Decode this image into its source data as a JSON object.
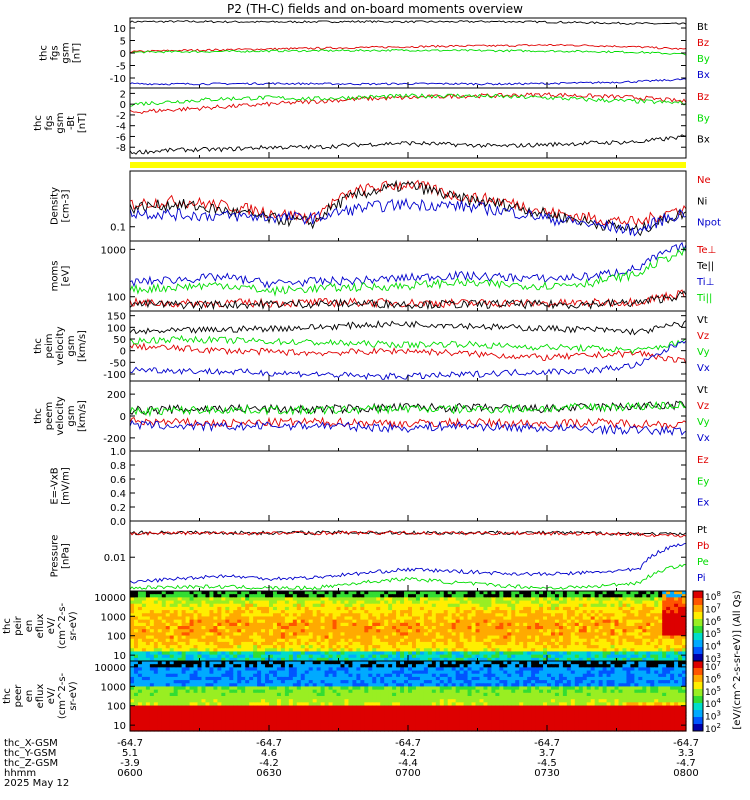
{
  "title": "P2 (TH-C) fields and on-board moments overview",
  "colors": {
    "black": "#000000",
    "red": "#e00000",
    "green": "#00dd00",
    "blue": "#0000cc",
    "yellow": "#ffff00"
  },
  "chart_data": [
    {
      "type": "line",
      "ylabel": [
        "thc",
        "fgs",
        "gsm",
        "[nT]"
      ],
      "ylim": [
        -14,
        14
      ],
      "yticks": [
        "10",
        "5",
        "0",
        "-5",
        "-10"
      ],
      "ytick_values": [
        10,
        5,
        0,
        -5,
        -10
      ],
      "series": [
        {
          "name": "Bt",
          "color": "black",
          "values": [
            12.5,
            12.6,
            12.5,
            12.4,
            12.5,
            12.6,
            12.5,
            12.5,
            12.6,
            12.4,
            12.1,
            11.8,
            11.6
          ]
        },
        {
          "name": "Bz",
          "color": "red",
          "values": [
            0.5,
            1,
            1.3,
            1.6,
            1.9,
            2.2,
            2.5,
            2.8,
            2.9,
            3.2,
            3.0,
            2.4,
            1.5
          ]
        },
        {
          "name": "By",
          "color": "green",
          "values": [
            0.3,
            0.5,
            0.6,
            0.8,
            0.9,
            1.0,
            1.1,
            1.0,
            0.9,
            0.8,
            0.6,
            0.3,
            -0.5
          ]
        },
        {
          "name": "Bx",
          "color": "blue",
          "values": [
            -12.3,
            -12.4,
            -12.3,
            -12.2,
            -12.3,
            -12.4,
            -12.3,
            -12.3,
            -12.4,
            -12.2,
            -11.9,
            -11.4,
            -10.5
          ]
        }
      ]
    },
    {
      "type": "line",
      "ylabel": [
        "thc",
        "fgs",
        "gsm",
        "-Bt",
        "[nT]"
      ],
      "ylim": [
        -10,
        3
      ],
      "yticks": [
        "2",
        "0",
        "-2",
        "-4",
        "-6",
        "-8"
      ],
      "ytick_values": [
        2,
        0,
        -2,
        -4,
        -6,
        -8
      ],
      "series": [
        {
          "name": "Bz",
          "color": "red",
          "values": [
            -1.5,
            -1,
            -0.5,
            0,
            0.5,
            1,
            1.2,
            1.5,
            1.6,
            1.8,
            1.5,
            1.2,
            0.5
          ]
        },
        {
          "name": "By",
          "color": "green",
          "values": [
            0,
            0.5,
            1,
            1.2,
            1,
            1.3,
            1.5,
            1.6,
            1.4,
            1.2,
            0.8,
            0.5,
            0.2
          ]
        },
        {
          "name": "Bx",
          "color": "black",
          "values": [
            -9,
            -8.5,
            -8.4,
            -8,
            -8,
            -7.5,
            -7.2,
            -7.5,
            -7.8,
            -7.5,
            -7.2,
            -7,
            -6
          ]
        }
      ]
    },
    {
      "type": "line",
      "ylabel": [
        "Density",
        "[cm-3]"
      ],
      "ylog": true,
      "ylim": [
        0.05,
        1.5
      ],
      "yticks": [
        "0.1"
      ],
      "ytick_values": [
        0.1
      ],
      "series": [
        {
          "name": "Ne",
          "color": "red",
          "values": [
            0.3,
            0.35,
            0.28,
            0.2,
            0.15,
            0.6,
            0.8,
            0.45,
            0.35,
            0.2,
            0.15,
            0.12,
            0.25
          ]
        },
        {
          "name": "Ni",
          "color": "black",
          "values": [
            0.25,
            0.3,
            0.22,
            0.15,
            0.12,
            0.5,
            0.75,
            0.4,
            0.3,
            0.18,
            0.12,
            0.08,
            0.2
          ]
        },
        {
          "name": "Npot",
          "color": "blue",
          "values": [
            0.2,
            0.18,
            0.17,
            0.16,
            0.15,
            0.25,
            0.3,
            0.28,
            0.22,
            0.15,
            0.11,
            0.08,
            0.2
          ]
        }
      ]
    },
    {
      "type": "line",
      "ylabel": [
        "moms",
        "[eV]"
      ],
      "ylog": true,
      "ylim": [
        50,
        1500
      ],
      "yticks": [
        "1000",
        "100"
      ],
      "ytick_values": [
        1000,
        100
      ],
      "series": [
        {
          "name": "Te⊥",
          "color": "red",
          "values": [
            75,
            72,
            74,
            73,
            75,
            76,
            74,
            73,
            74,
            72,
            74,
            80,
            120
          ]
        },
        {
          "name": "Te||",
          "color": "black",
          "values": [
            70,
            68,
            69,
            70,
            71,
            72,
            70,
            69,
            70,
            68,
            70,
            75,
            110
          ]
        },
        {
          "name": "Ti⊥",
          "color": "blue",
          "values": [
            200,
            230,
            260,
            190,
            210,
            220,
            250,
            280,
            260,
            240,
            270,
            400,
            1200
          ]
        },
        {
          "name": "Ti||",
          "color": "green",
          "values": [
            140,
            160,
            180,
            130,
            150,
            160,
            170,
            200,
            180,
            170,
            200,
            300,
            900
          ]
        }
      ]
    },
    {
      "type": "line",
      "ylabel": [
        "thc",
        "peim",
        "velocity",
        "gsm",
        "[km/s]"
      ],
      "ylim": [
        -130,
        170
      ],
      "yticks": [
        "150",
        "100",
        "50",
        "0",
        "-50",
        "-100"
      ],
      "ytick_values": [
        150,
        100,
        50,
        0,
        -50,
        -100
      ],
      "series": [
        {
          "name": "Vt",
          "color": "black",
          "values": [
            80,
            85,
            90,
            95,
            100,
            110,
            115,
            110,
            100,
            95,
            90,
            80,
            120
          ]
        },
        {
          "name": "Vz",
          "color": "red",
          "values": [
            20,
            10,
            0,
            -5,
            -10,
            -5,
            0,
            -10,
            -20,
            -30,
            -20,
            -10,
            -50
          ]
        },
        {
          "name": "Vy",
          "color": "green",
          "values": [
            40,
            50,
            45,
            40,
            35,
            30,
            25,
            30,
            20,
            15,
            10,
            0,
            40
          ]
        },
        {
          "name": "Vx",
          "color": "blue",
          "values": [
            -80,
            -85,
            -90,
            -95,
            -100,
            -110,
            -110,
            -105,
            -95,
            -90,
            -85,
            -60,
            50
          ]
        }
      ]
    },
    {
      "type": "line",
      "ylabel": [
        "thc",
        "peem",
        "velocity",
        "gsm",
        "[km/s]"
      ],
      "ylim": [
        -320,
        320
      ],
      "yticks": [
        "200",
        "0",
        "-200"
      ],
      "ytick_values": [
        200,
        0,
        -200
      ],
      "series": [
        {
          "name": "Vt",
          "color": "black",
          "values": [
            50,
            60,
            70,
            65,
            60,
            70,
            80,
            75,
            70,
            65,
            80,
            90,
            100
          ]
        },
        {
          "name": "Vz",
          "color": "red",
          "values": [
            -50,
            -60,
            -70,
            -60,
            -55,
            -60,
            -70,
            -60,
            -65,
            -70,
            -60,
            -70,
            -80
          ]
        },
        {
          "name": "Vy",
          "color": "green",
          "values": [
            40,
            50,
            60,
            55,
            50,
            60,
            70,
            60,
            65,
            70,
            80,
            90,
            100
          ]
        },
        {
          "name": "Vx",
          "color": "blue",
          "values": [
            -80,
            -90,
            -100,
            -90,
            -85,
            -100,
            -110,
            -90,
            -100,
            -110,
            -120,
            -130,
            -140
          ]
        }
      ]
    },
    {
      "type": "line",
      "ylabel": [
        "E=-VxB",
        "[mV/m]"
      ],
      "ylim": [
        0,
        1
      ],
      "yticks": [
        "1.0",
        "0.8",
        "0.6",
        "0.4",
        "0.2",
        "0.0"
      ],
      "ytick_values": [
        1,
        0.8,
        0.6,
        0.4,
        0.2,
        0
      ],
      "series": [
        {
          "name": "Ez",
          "color": "red",
          "values": []
        },
        {
          "name": "Ey",
          "color": "green",
          "values": []
        },
        {
          "name": "Ex",
          "color": "blue",
          "values": []
        }
      ]
    },
    {
      "type": "line",
      "ylabel": [
        "Pressure",
        "[nPa]"
      ],
      "ylog": true,
      "ylim": [
        0.0008,
        0.15
      ],
      "yticks": [
        "0.01"
      ],
      "ytick_values": [
        0.01
      ],
      "series": [
        {
          "name": "Pt",
          "color": "black",
          "values": [
            0.062,
            0.063,
            0.062,
            0.062,
            0.063,
            0.064,
            0.063,
            0.062,
            0.063,
            0.062,
            0.061,
            0.058,
            0.055
          ]
        },
        {
          "name": "Pb",
          "color": "red",
          "values": [
            0.06,
            0.061,
            0.06,
            0.06,
            0.061,
            0.062,
            0.061,
            0.06,
            0.061,
            0.06,
            0.058,
            0.055,
            0.05
          ]
        },
        {
          "name": "Pe",
          "color": "green",
          "values": [
            0.001,
            0.0011,
            0.0011,
            0.001,
            0.001,
            0.0015,
            0.002,
            0.0015,
            0.0012,
            0.001,
            0.0011,
            0.0015,
            0.006
          ]
        },
        {
          "name": "Pi",
          "color": "blue",
          "values": [
            0.0015,
            0.002,
            0.0025,
            0.002,
            0.0022,
            0.003,
            0.004,
            0.0035,
            0.003,
            0.0028,
            0.0032,
            0.004,
            0.03
          ]
        }
      ]
    },
    {
      "type": "heatmap",
      "ylabel": [
        "thc",
        "peir",
        "en",
        "eflux",
        "eV/",
        "(cm^2-s-",
        "sr-eV)"
      ],
      "ylog": true,
      "ylim": [
        5,
        20000
      ],
      "yticks": [
        "10000",
        "1000",
        "100",
        "10"
      ],
      "ytick_values": [
        10000,
        1000,
        100,
        10
      ]
    },
    {
      "type": "heatmap",
      "ylabel": [
        "thc",
        "peer",
        "en",
        "eflux",
        "eV/",
        "(cm^2-s-",
        "sr-eV)"
      ],
      "ylog": true,
      "ylim": [
        5,
        20000
      ],
      "yticks": [
        "10000",
        "1000",
        "100",
        "10"
      ],
      "ytick_values": [
        10000,
        1000,
        100,
        10
      ]
    }
  ],
  "colorbar": {
    "upper_ticks": [
      "10^8",
      "10^7",
      "10^6",
      "10^5",
      "10^4",
      "10^3"
    ],
    "lower_ticks": [
      "10^7",
      "10^6",
      "10^5",
      "10^4",
      "10^3",
      "10^2"
    ],
    "label": "[eV/(cm^2-s-sr-eV)] (All Qs)"
  },
  "xaxis": {
    "tick_times": [
      "0600",
      "0630",
      "0700",
      "0730",
      "0800"
    ],
    "rows": [
      {
        "name": "thc_X-GSM",
        "values": [
          "-64.7",
          "-64.7",
          "-64.7",
          "-64.7",
          "-64.7"
        ]
      },
      {
        "name": "thc_Y-GSM",
        "values": [
          "5.1",
          "4.6",
          "4.2",
          "3.7",
          "3.3"
        ]
      },
      {
        "name": "thc_Z-GSM",
        "values": [
          "-3.9",
          "-4.2",
          "-4.4",
          "-4.5",
          "-4.7"
        ]
      },
      {
        "name": "hhmm",
        "values": [
          "0600",
          "0630",
          "0700",
          "0730",
          "0800"
        ]
      }
    ],
    "date": "2025 May 12"
  }
}
